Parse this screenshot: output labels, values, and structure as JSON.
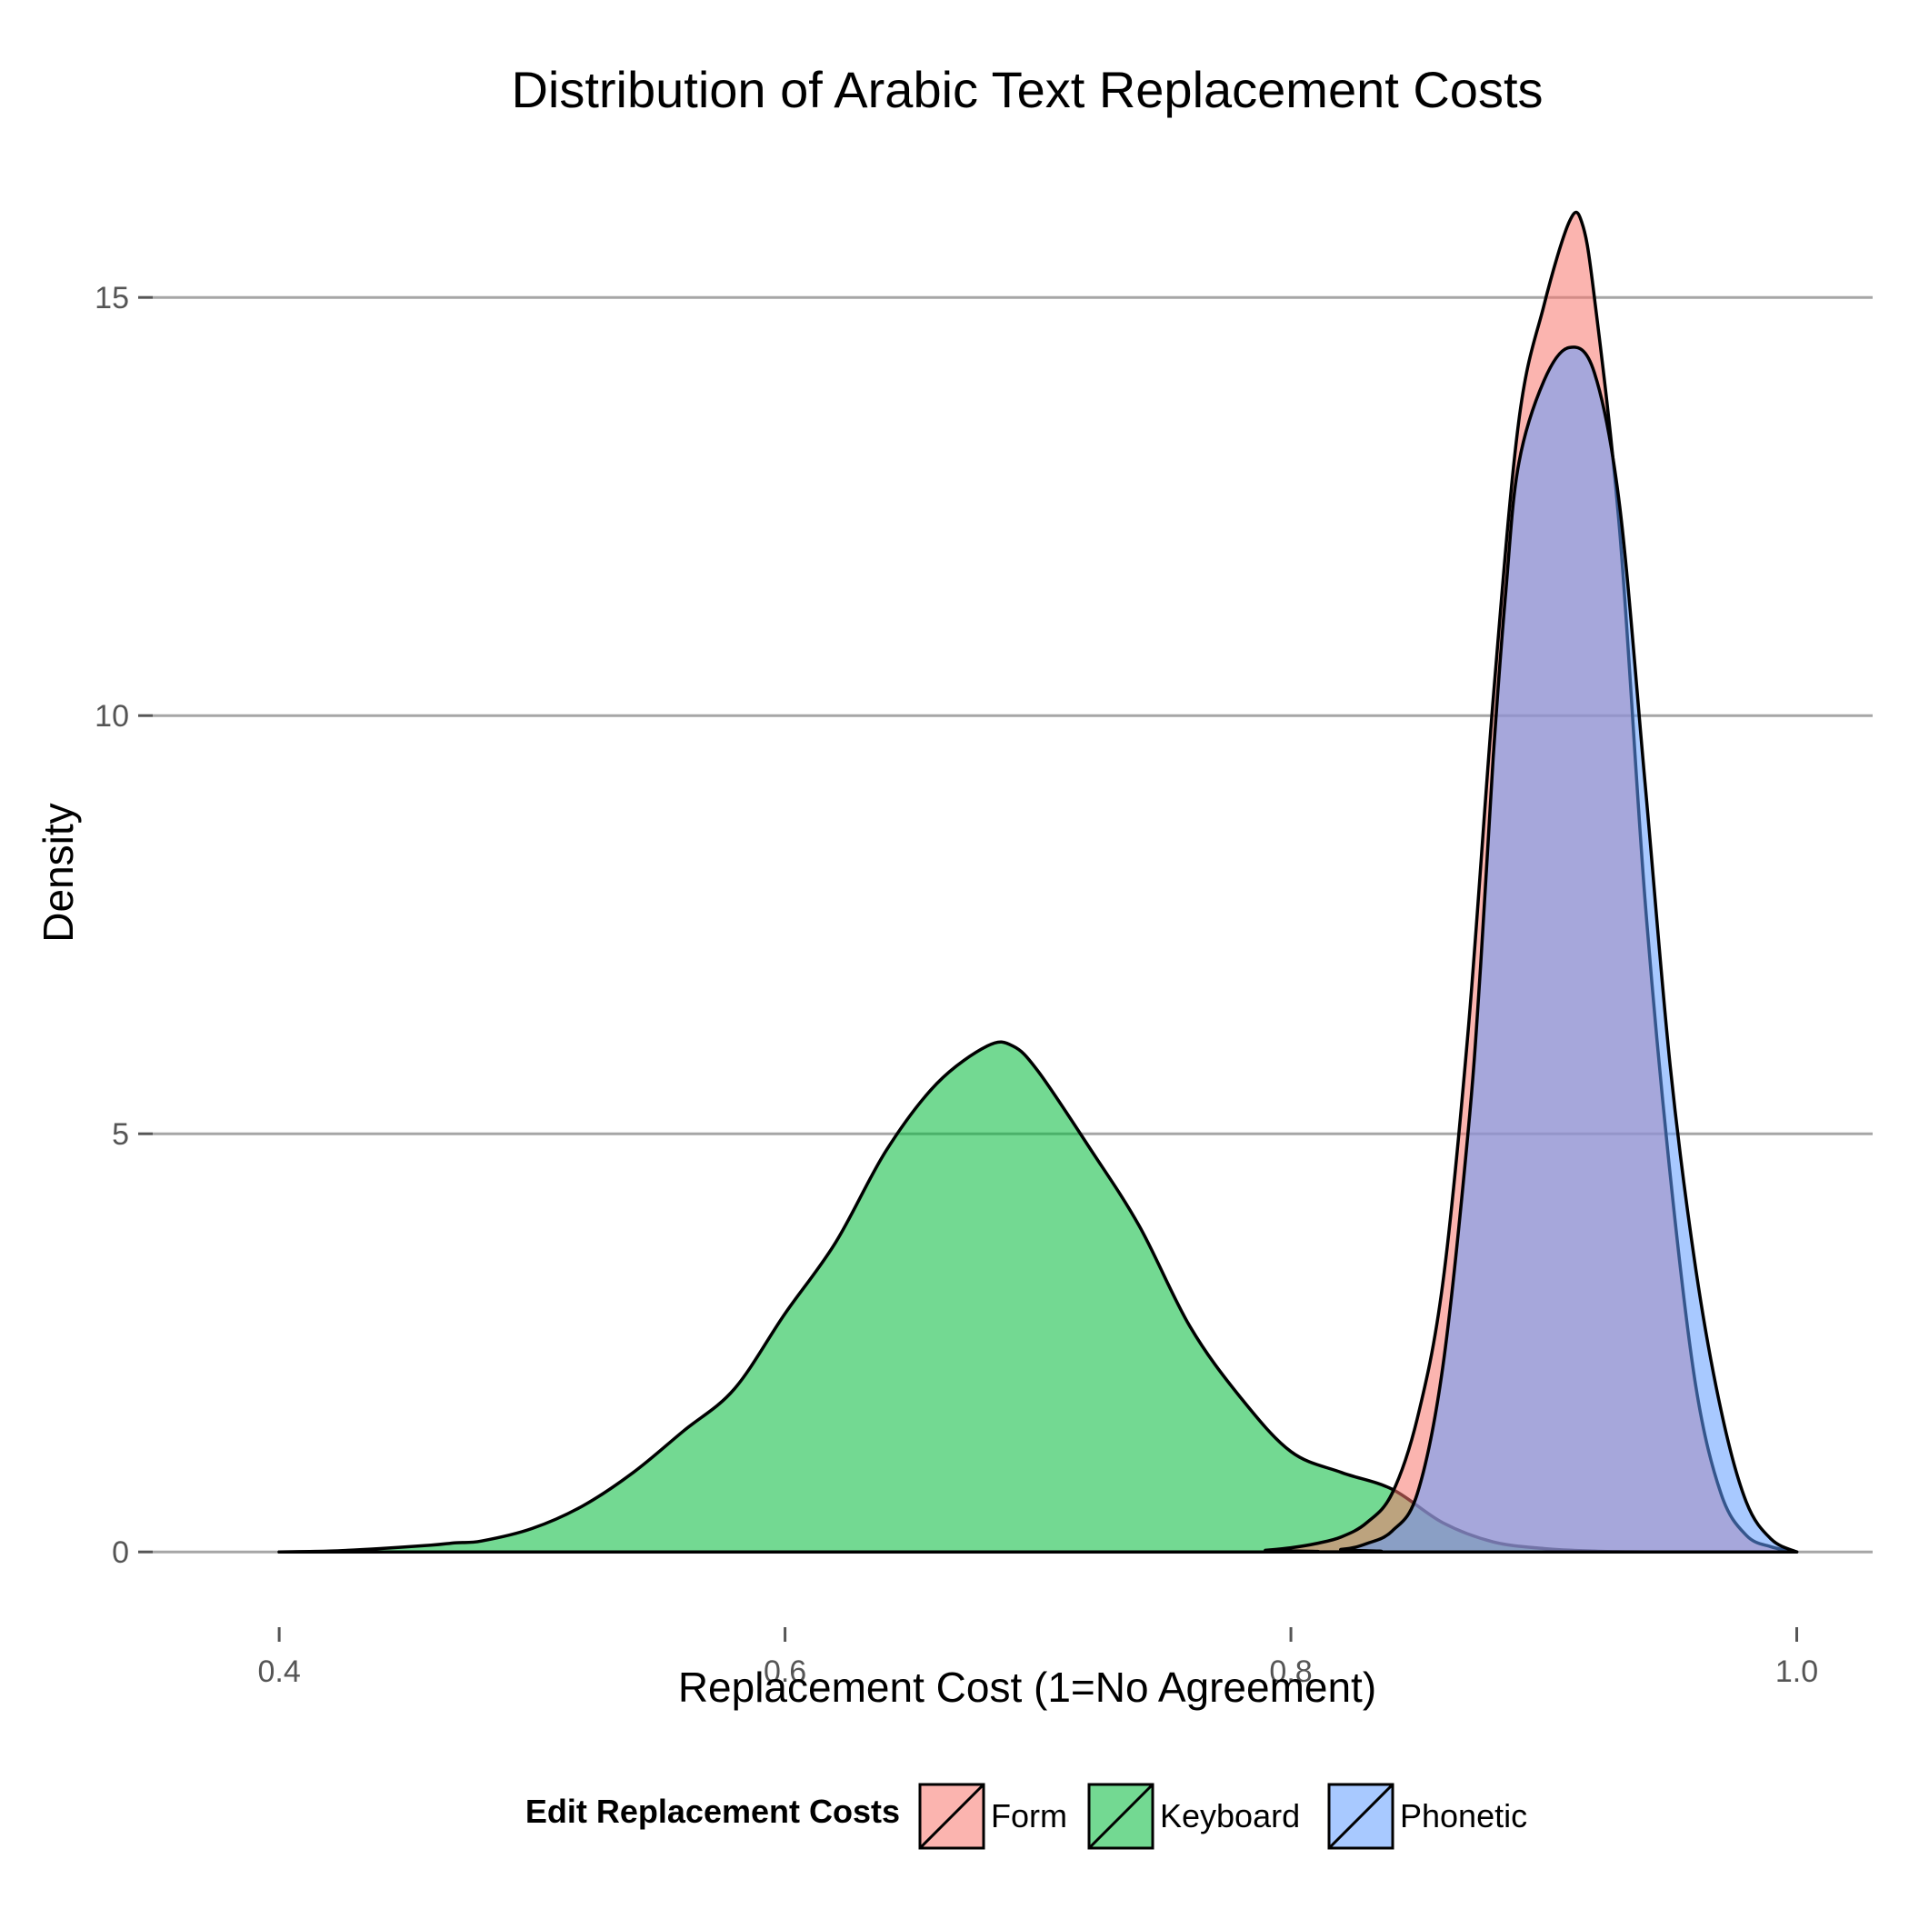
{
  "chart_data": {
    "type": "area",
    "title": "Distribution of Arabic Text Replacement Costs",
    "xlabel": "Replacement Cost (1=No Agreement)",
    "ylabel": "Density",
    "xlim": [
      0.35,
      1.03
    ],
    "ylim": [
      -0.9,
      16.6
    ],
    "x_ticks": [
      0.4,
      0.6,
      0.8,
      1.0
    ],
    "x_tick_labels": [
      "0.4",
      "0.6",
      "0.8",
      "1.0"
    ],
    "y_ticks": [
      0,
      5,
      10,
      15
    ],
    "y_tick_labels": [
      "0",
      "5",
      "10",
      "15"
    ],
    "grid": true,
    "legend": {
      "title": "Edit Replacement Costs",
      "position": "bottom"
    },
    "series": [
      {
        "name": "Keyboard",
        "color": "#00BA38",
        "x": [
          0.4,
          0.42,
          0.44,
          0.46,
          0.47,
          0.48,
          0.5,
          0.52,
          0.54,
          0.56,
          0.58,
          0.6,
          0.62,
          0.64,
          0.66,
          0.68,
          0.69,
          0.7,
          0.72,
          0.74,
          0.76,
          0.78,
          0.8,
          0.82,
          0.84,
          0.86,
          0.88,
          0.9,
          0.92,
          0.94,
          1.0
        ],
        "y": [
          0,
          0.01,
          0.04,
          0.08,
          0.11,
          0.13,
          0.28,
          0.55,
          0.95,
          1.45,
          1.95,
          2.85,
          3.7,
          4.8,
          5.6,
          6.05,
          6.05,
          5.75,
          4.85,
          3.9,
          2.7,
          1.85,
          1.2,
          0.95,
          0.75,
          0.35,
          0.12,
          0.04,
          0.01,
          0,
          0
        ]
      },
      {
        "name": "Form",
        "color": "#F8766D",
        "x": [
          0.4,
          0.78,
          0.79,
          0.8,
          0.81,
          0.82,
          0.83,
          0.84,
          0.85,
          0.86,
          0.87,
          0.88,
          0.89,
          0.9,
          0.91,
          0.915,
          0.92,
          0.93,
          0.94,
          0.95,
          0.96,
          0.97,
          0.98,
          0.99,
          1.0
        ],
        "y": [
          0,
          0,
          0.02,
          0.05,
          0.1,
          0.18,
          0.35,
          0.7,
          1.6,
          3.2,
          6.2,
          10.2,
          13.5,
          14.9,
          15.9,
          15.9,
          15.0,
          12.2,
          7.8,
          4.5,
          2.0,
          0.7,
          0.2,
          0.06,
          0
        ]
      },
      {
        "name": "Phonetic",
        "color": "#619CFF",
        "x": [
          0.4,
          0.8,
          0.82,
          0.83,
          0.84,
          0.85,
          0.86,
          0.87,
          0.875,
          0.88,
          0.885,
          0.89,
          0.9,
          0.91,
          0.92,
          0.93,
          0.94,
          0.95,
          0.96,
          0.97,
          0.98,
          0.99,
          1.0
        ],
        "y": [
          0,
          0,
          0.03,
          0.1,
          0.25,
          0.7,
          2.2,
          5.0,
          7.0,
          9.5,
          11.5,
          13.0,
          14.0,
          14.4,
          14.1,
          12.5,
          9.2,
          5.8,
          3.4,
          1.7,
          0.6,
          0.15,
          0
        ]
      }
    ]
  }
}
